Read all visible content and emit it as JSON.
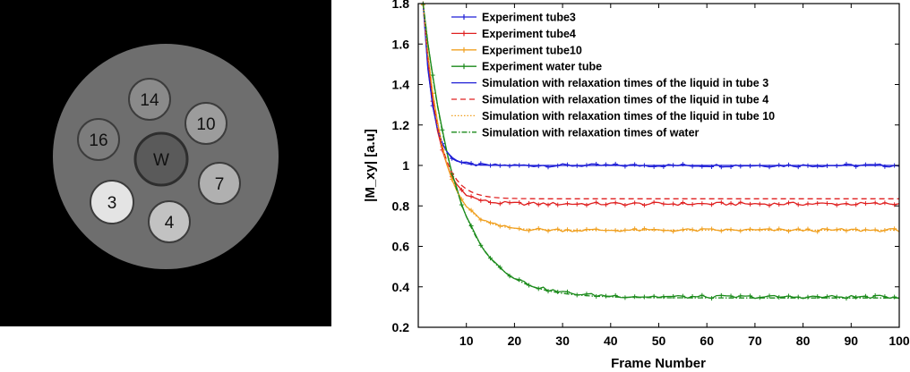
{
  "phantom": {
    "tube_labels": [
      "14",
      "10",
      "16",
      "W",
      "7",
      "3",
      "4"
    ]
  },
  "chart_data": {
    "type": "line",
    "title": "",
    "xlabel": "Frame Number",
    "ylabel": "|M_xy| [a.u]",
    "xlim": [
      0,
      100
    ],
    "ylim": [
      0.2,
      1.8
    ],
    "xticks": [
      10,
      20,
      30,
      40,
      50,
      60,
      70,
      80,
      90,
      100
    ],
    "yticks": [
      0.2,
      0.4,
      0.6,
      0.8,
      1,
      1.2,
      1.4,
      1.6,
      1.8
    ],
    "grid": false,
    "legend": "top-left",
    "series": [
      {
        "name": "Experiment tube3",
        "kind": "experiment",
        "color": "#1f1fd6",
        "marker": "+",
        "start": 1.8,
        "plateau": 1.0,
        "tau": 2.0
      },
      {
        "name": "Experiment tube4",
        "kind": "experiment",
        "color": "#e02020",
        "marker": "+",
        "start": 1.8,
        "plateau": 0.81,
        "tau": 3.0
      },
      {
        "name": "Experiment tube10",
        "kind": "experiment",
        "color": "#f0a020",
        "marker": "*",
        "start": 1.8,
        "plateau": 0.68,
        "tau": 4.0
      },
      {
        "name": "Experiment water tube",
        "kind": "experiment",
        "color": "#1a8a1a",
        "marker": "+",
        "start": 1.8,
        "plateau": 0.35,
        "tau": 7.0
      },
      {
        "name": "Simulation with relaxation times of the liquid in tube 3",
        "kind": "simulation",
        "color": "#1f1fd6",
        "dash": "",
        "start": 1.8,
        "plateau": 1.0,
        "tau": 2.0
      },
      {
        "name": "Simulation with relaxation times of the liquid in tube 4",
        "kind": "simulation",
        "color": "#e02020",
        "dash": "6,4",
        "start": 1.8,
        "plateau": 0.835,
        "tau": 3.0
      },
      {
        "name": "Simulation with relaxation times of the liquid in tube 10",
        "kind": "simulation",
        "color": "#f0a020",
        "dash": "1.5,2",
        "start": 1.8,
        "plateau": 0.68,
        "tau": 4.0
      },
      {
        "name": "Simulation with relaxation times of water",
        "kind": "simulation",
        "color": "#1a8a1a",
        "dash": "6,2,1.5,2",
        "start": 1.8,
        "plateau": 0.345,
        "tau": 7.0
      }
    ]
  }
}
